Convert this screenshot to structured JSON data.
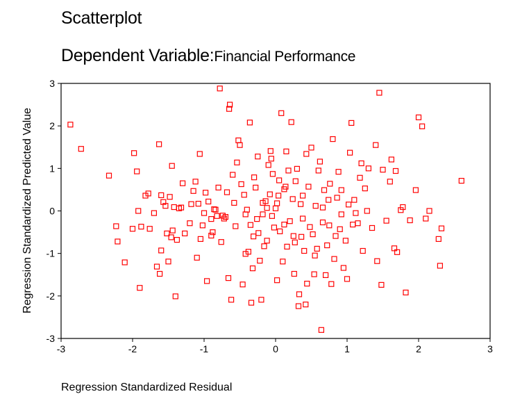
{
  "title": "Scatterplot",
  "subtitle_prefix": "Dependent Variable:",
  "subtitle_variable": "Financial Performance",
  "chart_data": {
    "type": "scatter",
    "title": "Scatterplot",
    "subtitle": "Dependent Variable: Financial Performance",
    "xlabel": "Regression Standardized Residual",
    "ylabel": "Regression Standardized Predicted Value",
    "xlim": [
      -3,
      3
    ],
    "ylim": [
      -3,
      3
    ],
    "xticks": [
      "-3",
      "-2",
      "-1",
      "0",
      "1",
      "2",
      "3"
    ],
    "yticks": [
      "3",
      "2",
      "1",
      "0",
      "-1",
      "-2",
      "-3"
    ],
    "grid": false,
    "marker": "hollow-square",
    "marker_color": "#ff0000",
    "points": [
      [
        -2.87,
        2.03
      ],
      [
        -2.72,
        1.46
      ],
      [
        -2.33,
        0.83
      ],
      [
        -2.23,
        -0.36
      ],
      [
        -2.21,
        -0.72
      ],
      [
        -2.11,
        -1.21
      ],
      [
        -2.0,
        -0.42
      ],
      [
        -1.98,
        1.36
      ],
      [
        -1.94,
        0.93
      ],
      [
        -1.92,
        0.0
      ],
      [
        -1.9,
        -1.81
      ],
      [
        -1.88,
        -0.37
      ],
      [
        -1.82,
        0.36
      ],
      [
        -1.78,
        0.41
      ],
      [
        -1.76,
        -0.42
      ],
      [
        -1.7,
        -0.05
      ],
      [
        -1.66,
        -1.31
      ],
      [
        -1.63,
        1.57
      ],
      [
        -1.62,
        -1.48
      ],
      [
        -1.6,
        0.37
      ],
      [
        -1.57,
        0.21
      ],
      [
        -1.54,
        0.12
      ],
      [
        -1.52,
        -0.53
      ],
      [
        -1.5,
        -1.19
      ],
      [
        -1.48,
        0.33
      ],
      [
        -1.46,
        -0.62
      ],
      [
        -1.45,
        1.06
      ],
      [
        -1.44,
        -0.46
      ],
      [
        -1.42,
        0.09
      ],
      [
        -1.4,
        -2.01
      ],
      [
        -1.38,
        -0.68
      ],
      [
        -1.35,
        0.06
      ],
      [
        -1.32,
        0.08
      ],
      [
        -1.3,
        0.65
      ],
      [
        -1.2,
        -0.29
      ],
      [
        -1.18,
        0.16
      ],
      [
        -1.15,
        0.47
      ],
      [
        -1.12,
        0.69
      ],
      [
        -1.1,
        -1.1
      ],
      [
        -1.08,
        0.17
      ],
      [
        -1.06,
        1.34
      ],
      [
        -1.05,
        -0.66
      ],
      [
        -1.02,
        -0.34
      ],
      [
        -1.0,
        -0.05
      ],
      [
        -0.98,
        0.43
      ],
      [
        -0.96,
        -1.65
      ],
      [
        -0.94,
        0.22
      ],
      [
        -0.9,
        -0.19
      ],
      [
        -0.88,
        -0.5
      ],
      [
        -0.86,
        0.04
      ],
      [
        -0.84,
        0.03
      ],
      [
        -0.82,
        -0.12
      ],
      [
        -0.8,
        0.55
      ],
      [
        -0.78,
        2.88
      ],
      [
        -0.76,
        -0.73
      ],
      [
        -0.74,
        -0.11
      ],
      [
        -0.72,
        -0.18
      ],
      [
        -0.7,
        -0.14
      ],
      [
        -0.68,
        0.44
      ],
      [
        -0.66,
        -1.58
      ],
      [
        -0.65,
        2.4
      ],
      [
        -0.64,
        2.5
      ],
      [
        -0.62,
        -2.09
      ],
      [
        -0.6,
        0.85
      ],
      [
        -0.58,
        0.19
      ],
      [
        -0.56,
        -0.36
      ],
      [
        -0.54,
        1.14
      ],
      [
        -0.52,
        1.66
      ],
      [
        -0.5,
        1.55
      ],
      [
        -0.48,
        0.63
      ],
      [
        -0.46,
        -1.73
      ],
      [
        -0.44,
        0.38
      ],
      [
        -0.42,
        -0.08
      ],
      [
        -0.4,
        0.03
      ],
      [
        -0.38,
        -0.96
      ],
      [
        -0.36,
        2.08
      ],
      [
        -0.35,
        -0.33
      ],
      [
        -0.34,
        -2.16
      ],
      [
        -0.32,
        -1.35
      ],
      [
        -0.3,
        0.79
      ],
      [
        -0.28,
        0.55
      ],
      [
        -0.26,
        -0.19
      ],
      [
        -0.25,
        1.28
      ],
      [
        -0.24,
        -0.52
      ],
      [
        -0.22,
        -1.17
      ],
      [
        -0.2,
        -2.09
      ],
      [
        -0.18,
        0.19
      ],
      [
        -0.16,
        -0.83
      ],
      [
        -0.14,
        0.23
      ],
      [
        -0.12,
        -0.7
      ],
      [
        -0.1,
        1.08
      ],
      [
        -0.08,
        0.39
      ],
      [
        -0.06,
        1.23
      ],
      [
        -0.05,
        -0.12
      ],
      [
        -0.04,
        0.87
      ],
      [
        -0.02,
        -0.39
      ],
      [
        0.0,
        0.06
      ],
      [
        0.02,
        -1.63
      ],
      [
        0.04,
        0.36
      ],
      [
        0.05,
        0.72
      ],
      [
        0.06,
        -0.48
      ],
      [
        0.08,
        2.3
      ],
      [
        0.1,
        -1.19
      ],
      [
        0.12,
        -0.32
      ],
      [
        0.14,
        0.57
      ],
      [
        0.15,
        1.4
      ],
      [
        0.16,
        -0.84
      ],
      [
        0.18,
        0.95
      ],
      [
        0.2,
        -0.24
      ],
      [
        0.22,
        2.09
      ],
      [
        0.24,
        0.28
      ],
      [
        0.25,
        -0.59
      ],
      [
        0.26,
        -1.48
      ],
      [
        0.28,
        0.7
      ],
      [
        0.3,
        0.99
      ],
      [
        0.32,
        -2.24
      ],
      [
        0.33,
        -1.96
      ],
      [
        0.35,
        0.16
      ],
      [
        0.36,
        -0.61
      ],
      [
        0.38,
        0.36
      ],
      [
        0.4,
        -0.94
      ],
      [
        0.42,
        -2.2
      ],
      [
        0.43,
        1.34
      ],
      [
        0.44,
        -1.71
      ],
      [
        0.46,
        0.57
      ],
      [
        0.48,
        -0.38
      ],
      [
        0.5,
        1.49
      ],
      [
        0.52,
        -0.55
      ],
      [
        0.54,
        -1.49
      ],
      [
        0.56,
        0.12
      ],
      [
        0.58,
        -0.89
      ],
      [
        0.6,
        0.95
      ],
      [
        0.62,
        1.16
      ],
      [
        0.64,
        -2.8
      ],
      [
        0.66,
        -0.27
      ],
      [
        0.68,
        0.49
      ],
      [
        0.7,
        -1.51
      ],
      [
        0.72,
        -0.81
      ],
      [
        0.74,
        0.26
      ],
      [
        0.76,
        0.64
      ],
      [
        0.78,
        -1.72
      ],
      [
        0.8,
        1.69
      ],
      [
        0.82,
        -1.13
      ],
      [
        0.84,
        -0.59
      ],
      [
        0.86,
        0.31
      ],
      [
        0.88,
        0.92
      ],
      [
        0.9,
        -0.43
      ],
      [
        0.92,
        0.49
      ],
      [
        0.95,
        -1.34
      ],
      [
        0.98,
        -0.7
      ],
      [
        1.0,
        -1.6
      ],
      [
        1.02,
        0.15
      ],
      [
        1.04,
        1.37
      ],
      [
        1.06,
        2.07
      ],
      [
        1.08,
        -0.32
      ],
      [
        1.1,
        0.26
      ],
      [
        1.12,
        -0.05
      ],
      [
        1.15,
        -0.29
      ],
      [
        1.18,
        0.78
      ],
      [
        1.2,
        1.12
      ],
      [
        1.22,
        -0.94
      ],
      [
        1.25,
        0.53
      ],
      [
        1.28,
        0.0
      ],
      [
        1.3,
        1.0
      ],
      [
        1.35,
        -0.4
      ],
      [
        1.4,
        1.55
      ],
      [
        1.42,
        -1.18
      ],
      [
        1.45,
        2.78
      ],
      [
        1.48,
        -1.74
      ],
      [
        1.5,
        0.97
      ],
      [
        1.55,
        -0.23
      ],
      [
        1.6,
        0.69
      ],
      [
        1.62,
        1.21
      ],
      [
        1.66,
        -0.88
      ],
      [
        1.68,
        0.94
      ],
      [
        1.7,
        -0.97
      ],
      [
        1.75,
        0.02
      ],
      [
        1.78,
        0.09
      ],
      [
        1.82,
        -1.92
      ],
      [
        1.88,
        -0.22
      ],
      [
        1.96,
        0.49
      ],
      [
        2.0,
        2.2
      ],
      [
        2.05,
        1.99
      ],
      [
        2.1,
        -0.18
      ],
      [
        2.15,
        0.0
      ],
      [
        2.28,
        -0.66
      ],
      [
        2.3,
        -1.29
      ],
      [
        2.32,
        -0.41
      ],
      [
        2.6,
        0.71
      ],
      [
        -0.9,
        -0.58
      ],
      [
        -1.27,
        -0.53
      ],
      [
        -1.6,
        -0.93
      ],
      [
        -0.18,
        -0.08
      ],
      [
        0.27,
        -0.74
      ],
      [
        0.55,
        -1.05
      ],
      [
        0.12,
        0.51
      ],
      [
        -0.12,
        0.07
      ],
      [
        0.66,
        0.08
      ],
      [
        0.38,
        -0.18
      ],
      [
        0.92,
        -0.08
      ],
      [
        -0.42,
        -1.01
      ],
      [
        -0.07,
        1.41
      ],
      [
        0.02,
        0.18
      ],
      [
        0.75,
        -0.34
      ],
      [
        -0.31,
        -0.6
      ]
    ]
  }
}
